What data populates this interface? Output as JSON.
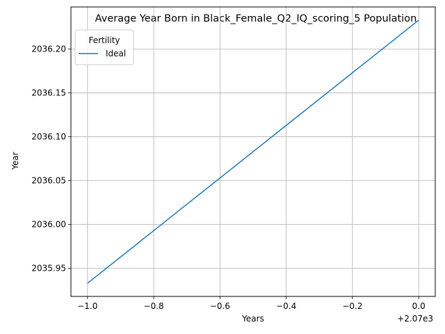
{
  "chart_data": {
    "type": "line",
    "title": "Average Year Born in Black_Female_Q2_IQ_scoring_5 Population",
    "xlabel": "Years",
    "ylabel": "Year",
    "x_offset_label": "+2.07e3",
    "x_tick_labels": [
      "−1.0",
      "−0.8",
      "−0.6",
      "−0.4",
      "−0.2",
      "0.0"
    ],
    "x_ticks": [
      2069.0,
      2069.2,
      2069.4,
      2069.6,
      2069.8,
      2070.0
    ],
    "y_tick_labels": [
      "2035.95",
      "2036.00",
      "2036.05",
      "2036.10",
      "2036.15",
      "2036.20"
    ],
    "y_ticks": [
      2035.95,
      2036.0,
      2036.05,
      2036.1,
      2036.15,
      2036.2
    ],
    "xlim": [
      2068.95,
      2070.05
    ],
    "ylim": [
      2035.918,
      2036.248
    ],
    "grid": true,
    "legend": {
      "title": "Fertility",
      "placement": "top-left"
    },
    "series": [
      {
        "name": "Ideal",
        "color": "#1f77b4",
        "x": [
          2069.0,
          2070.0
        ],
        "y": [
          2035.933,
          2036.233
        ]
      }
    ]
  }
}
